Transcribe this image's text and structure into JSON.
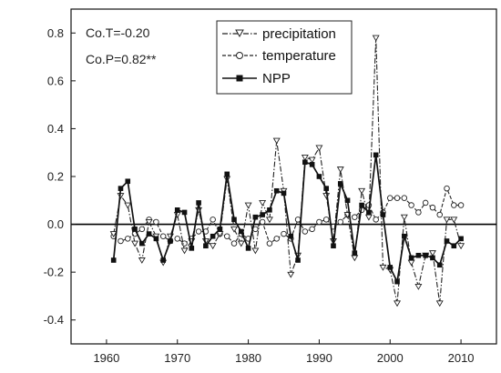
{
  "chart_data": {
    "type": "line",
    "title": "",
    "xlabel": "",
    "ylabel": "",
    "xlim": [
      1955,
      2015
    ],
    "ylim": [
      -0.5,
      0.9
    ],
    "xticks": [
      1960,
      1970,
      1980,
      1990,
      2000,
      2010
    ],
    "yticks": [
      -0.4,
      -0.2,
      0.0,
      0.2,
      0.4,
      0.6,
      0.8
    ],
    "ytick_labels": [
      "-0.4",
      "-0.2",
      "0.0",
      "0.2",
      "0.4",
      "0.6",
      "0.8"
    ],
    "grid": false,
    "zero_line": true,
    "legend_position": "top-center",
    "annotations": [
      "Co.T=-0.20",
      "Co.P=0.82**"
    ],
    "series": [
      {
        "name": "precipitation",
        "style": "dash-dot",
        "marker": "open-triangle-down",
        "color": "#222222",
        "x": [
          1961,
          1962,
          1963,
          1964,
          1965,
          1966,
          1967,
          1968,
          1969,
          1970,
          1971,
          1972,
          1973,
          1974,
          1975,
          1976,
          1977,
          1978,
          1979,
          1980,
          1981,
          1982,
          1983,
          1984,
          1985,
          1986,
          1987,
          1988,
          1989,
          1990,
          1991,
          1992,
          1993,
          1994,
          1995,
          1996,
          1997,
          1998,
          1999,
          2000,
          2001,
          2002,
          2003,
          2004,
          2005,
          2006,
          2007,
          2008,
          2009,
          2010
        ],
        "y": [
          -0.04,
          0.12,
          0.08,
          -0.08,
          -0.15,
          0.01,
          -0.05,
          -0.16,
          -0.05,
          0.04,
          -0.11,
          -0.07,
          0.06,
          -0.07,
          -0.09,
          -0.04,
          0.19,
          -0.02,
          -0.08,
          0.08,
          -0.11,
          0.09,
          0.02,
          0.35,
          0.14,
          -0.21,
          -0.13,
          0.28,
          0.27,
          0.32,
          0.12,
          -0.07,
          0.23,
          0.04,
          -0.14,
          0.14,
          0.03,
          0.78,
          -0.18,
          -0.19,
          -0.33,
          0.03,
          -0.16,
          -0.26,
          -0.13,
          -0.12,
          -0.33,
          0.02,
          0.02,
          -0.09
        ]
      },
      {
        "name": "temperature",
        "style": "dashed",
        "marker": "open-circle",
        "color": "#222222",
        "x": [
          1961,
          1962,
          1963,
          1964,
          1965,
          1966,
          1967,
          1968,
          1969,
          1970,
          1971,
          1972,
          1973,
          1974,
          1975,
          1976,
          1977,
          1978,
          1979,
          1980,
          1981,
          1982,
          1983,
          1984,
          1985,
          1986,
          1987,
          1988,
          1989,
          1990,
          1991,
          1992,
          1993,
          1994,
          1995,
          1996,
          1997,
          1998,
          1999,
          2000,
          2001,
          2002,
          2003,
          2004,
          2005,
          2006,
          2007,
          2008,
          2009,
          2010
        ],
        "y": [
          -0.05,
          -0.07,
          -0.06,
          -0.04,
          -0.02,
          0.02,
          0.01,
          -0.05,
          -0.07,
          -0.06,
          -0.08,
          -0.06,
          -0.03,
          -0.03,
          0.02,
          -0.04,
          -0.05,
          -0.08,
          -0.04,
          -0.06,
          -0.02,
          0.01,
          -0.08,
          -0.06,
          -0.04,
          -0.06,
          0.02,
          -0.03,
          -0.02,
          0.01,
          0.02,
          -0.01,
          0.01,
          0.04,
          0.03,
          0.06,
          0.08,
          0.02,
          0.05,
          0.11,
          0.11,
          0.11,
          0.08,
          0.05,
          0.09,
          0.07,
          0.04,
          0.15,
          0.08,
          0.08
        ]
      },
      {
        "name": "NPP",
        "style": "solid",
        "marker": "filled-square",
        "color": "#111111",
        "x": [
          1961,
          1962,
          1963,
          1964,
          1965,
          1966,
          1967,
          1968,
          1969,
          1970,
          1971,
          1972,
          1973,
          1974,
          1975,
          1976,
          1977,
          1978,
          1979,
          1980,
          1981,
          1982,
          1983,
          1984,
          1985,
          1986,
          1987,
          1988,
          1989,
          1990,
          1991,
          1992,
          1993,
          1994,
          1995,
          1996,
          1997,
          1998,
          1999,
          2000,
          2001,
          2002,
          2003,
          2004,
          2005,
          2006,
          2007,
          2008,
          2009,
          2010
        ],
        "y": [
          -0.15,
          0.15,
          0.18,
          -0.02,
          -0.08,
          -0.04,
          -0.06,
          -0.15,
          -0.07,
          0.06,
          0.05,
          -0.1,
          0.09,
          -0.09,
          -0.05,
          -0.02,
          0.21,
          0.02,
          -0.03,
          -0.1,
          0.03,
          0.04,
          0.06,
          0.14,
          0.13,
          -0.05,
          -0.15,
          0.26,
          0.25,
          0.2,
          0.15,
          -0.09,
          0.17,
          0.1,
          -0.12,
          0.08,
          0.05,
          0.29,
          0.04,
          -0.18,
          -0.24,
          -0.05,
          -0.14,
          -0.13,
          -0.13,
          -0.14,
          -0.17,
          -0.07,
          -0.09,
          -0.06
        ]
      }
    ]
  }
}
